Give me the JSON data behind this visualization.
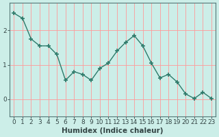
{
  "x": [
    0,
    1,
    2,
    3,
    4,
    5,
    6,
    7,
    8,
    9,
    10,
    11,
    12,
    13,
    14,
    15,
    16,
    17,
    18,
    19,
    20,
    21,
    22,
    23
  ],
  "y": [
    2.5,
    2.35,
    1.75,
    1.55,
    1.55,
    1.3,
    0.55,
    0.8,
    0.72,
    0.55,
    0.9,
    1.05,
    1.4,
    1.65,
    1.85,
    1.55,
    1.05,
    0.62,
    0.72,
    0.5,
    0.15,
    0.02,
    0.2,
    0.02
  ],
  "line_color": "#2d7a6a",
  "marker": "+",
  "marker_size": 5,
  "bg_color": "#cceee8",
  "grid_color": "#ff9999",
  "xlabel": "Humidex (Indice chaleur)",
  "ylim": [
    -0.5,
    2.8
  ],
  "xlim": [
    -0.5,
    23.5
  ],
  "yticks": [
    0,
    1,
    2
  ],
  "xticks": [
    0,
    1,
    2,
    3,
    4,
    5,
    6,
    7,
    8,
    9,
    10,
    11,
    12,
    13,
    14,
    15,
    16,
    17,
    18,
    19,
    20,
    21,
    22,
    23
  ],
  "tick_fontsize": 6.5,
  "xlabel_fontsize": 7.5,
  "line_width": 1.0,
  "spine_color": "#557777",
  "tick_color": "#334444"
}
